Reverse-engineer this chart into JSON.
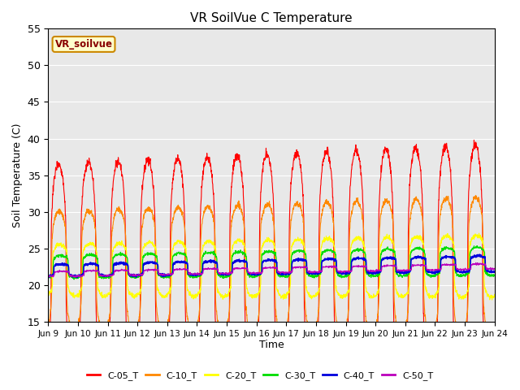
{
  "title": "VR SoilVue C Temperature",
  "ylabel": "Soil Temperature (C)",
  "xlabel": "Time",
  "ylim": [
    15,
    55
  ],
  "bg_color": "#e8e8e8",
  "legend_label": "VR_soilvue",
  "series_colors": {
    "C-05_T": "#ff0000",
    "C-10_T": "#ff8800",
    "C-20_T": "#ffff00",
    "C-30_T": "#00dd00",
    "C-40_T": "#0000dd",
    "C-50_T": "#bb00bb"
  },
  "xtick_labels": [
    "Jun 9",
    "Jun 10",
    "Jun 11",
    "Jun 12",
    "Jun 13",
    "Jun 14",
    "Jun 15",
    "Jun 16",
    "Jun 17",
    "Jun 18",
    "Jun 19",
    "Jun 20",
    "Jun 21",
    "Jun 22",
    "Jun 23",
    "Jun 24"
  ],
  "num_days": 15,
  "points_per_day": 144
}
